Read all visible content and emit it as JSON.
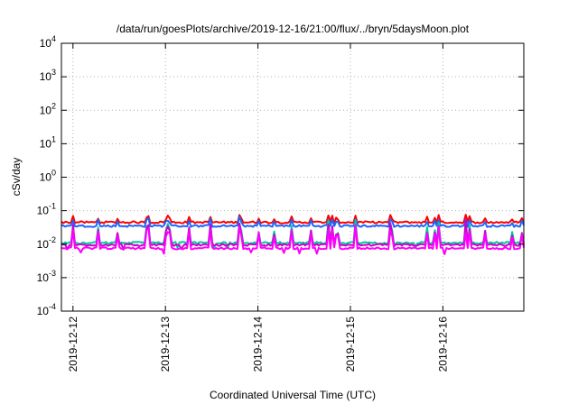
{
  "chart_data": {
    "type": "line",
    "title": "/data/run/goesPlots/archive/2019-12-16/21:00/flux/../bryn/5daysMoon.plot",
    "xlabel": "Coordinated Universal Time (UTC)",
    "ylabel": "cSv/day",
    "x_range": [
      "2019-12-11T21:00",
      "2019-12-16T21:00"
    ],
    "x_ticks": [
      "2019-12-12",
      "2019-12-13",
      "2019-12-14",
      "2019-12-15",
      "2019-12-16"
    ],
    "y_scale": "log",
    "y_range": [
      0.0001,
      10000
    ],
    "y_ticks": [
      {
        "base": "10",
        "exp": "-4",
        "value": 0.0001
      },
      {
        "base": "10",
        "exp": "-3",
        "value": 0.001
      },
      {
        "base": "10",
        "exp": "-2",
        "value": 0.01
      },
      {
        "base": "10",
        "exp": "-1",
        "value": 0.1
      },
      {
        "base": "10",
        "exp": "0",
        "value": 1
      },
      {
        "base": "10",
        "exp": "1",
        "value": 10
      },
      {
        "base": "10",
        "exp": "2",
        "value": 100
      },
      {
        "base": "10",
        "exp": "3",
        "value": 1000
      },
      {
        "base": "10",
        "exp": "4",
        "value": 10000
      }
    ],
    "grid": true,
    "series": [
      {
        "color": "#ff0000",
        "baseline": 0.045,
        "spike_max": 0.08
      },
      {
        "color": "#1a66ff",
        "baseline": 0.035,
        "spike_max": 0.065
      },
      {
        "color": "#00cc99",
        "baseline": 0.011,
        "spike_max": 0.06
      },
      {
        "color": "#cc00cc",
        "baseline": 0.0095,
        "spike_max": 0.055
      },
      {
        "color": "#ff00ff",
        "baseline": 0.0075,
        "spike_max": 0.05
      }
    ]
  }
}
